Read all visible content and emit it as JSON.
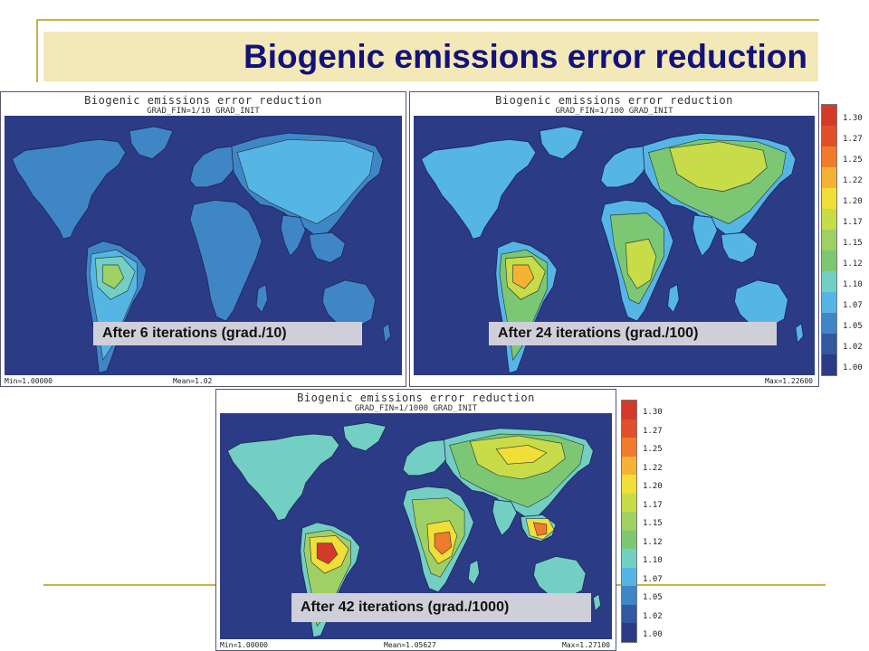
{
  "slide": {
    "title": "Biogenic emissions error reduction"
  },
  "colorscale": {
    "levels": [
      "1.30",
      "1.27",
      "1.25",
      "1.22",
      "1.20",
      "1.17",
      "1.15",
      "1.12",
      "1.10",
      "1.07",
      "1.05",
      "1.02",
      "1.00"
    ],
    "colors": [
      "#d43a2a",
      "#e0502a",
      "#ee7c2c",
      "#f6b235",
      "#f1de37",
      "#c7dc48",
      "#9fd063",
      "#7cc774",
      "#73cfc3",
      "#55b6e6",
      "#3f86c7",
      "#33589f",
      "#2b3b86"
    ]
  },
  "panels": [
    {
      "title": "Biogenic emissions error reduction",
      "subtitle": "GRAD_FIN=1/10 GRAD_INIT",
      "stat_left": "Min=1.00000",
      "stat_mid": "Mean=1.02",
      "stat_right": "",
      "caption": "After 6 iterations (grad./10)",
      "ocean_color": "#2b3b86",
      "land_color": "#3f86c7",
      "zones": [
        {
          "region": "eurasia",
          "color": "#55b6e6"
        },
        {
          "region": "s_america",
          "color": "#55b6e6"
        },
        {
          "region": "amazon",
          "color": "#73cfc3"
        },
        {
          "region": "amazon_core",
          "color": "#9fd063"
        }
      ]
    },
    {
      "title": "Biogenic emissions error reduction",
      "subtitle": "GRAD_FIN=1/100 GRAD_INIT",
      "stat_left": "",
      "stat_mid": "",
      "stat_right": "Max=1.22600",
      "caption": "After 24 iterations (grad./100)",
      "ocean_color": "#2b3b86",
      "land_color": "#55b6e6",
      "zones": [
        {
          "region": "eurasia",
          "color": "#7cc774"
        },
        {
          "region": "siberia",
          "color": "#c7dc48"
        },
        {
          "region": "africa",
          "color": "#7cc774"
        },
        {
          "region": "congo",
          "color": "#c7dc48"
        },
        {
          "region": "s_america",
          "color": "#7cc774"
        },
        {
          "region": "amazon",
          "color": "#c7dc48"
        },
        {
          "region": "amazon_core",
          "color": "#f6b235"
        }
      ]
    },
    {
      "title": "Biogenic emissions error reduction",
      "subtitle": "GRAD_FIN=1/1000 GRAD_INIT",
      "stat_left": "Min=1.00000",
      "stat_mid": "Mean=1.05627",
      "stat_right": "Max=1.27100",
      "caption": "After 42 iterations (grad./1000)",
      "ocean_color": "#2b3b86",
      "land_color": "#73cfc3",
      "zones": [
        {
          "region": "eurasia",
          "color": "#7cc774"
        },
        {
          "region": "siberia",
          "color": "#c7dc48"
        },
        {
          "region": "siberia_core",
          "color": "#f1de37"
        },
        {
          "region": "africa",
          "color": "#9fd063"
        },
        {
          "region": "congo",
          "color": "#f1de37"
        },
        {
          "region": "congo_core",
          "color": "#ee7c2c"
        },
        {
          "region": "s_america",
          "color": "#9fd063"
        },
        {
          "region": "amazon",
          "color": "#f1de37"
        },
        {
          "region": "amazon_core",
          "color": "#d43a2a"
        },
        {
          "region": "se_asia",
          "color": "#f1de37"
        },
        {
          "region": "se_asia_core",
          "color": "#ee7c2c"
        }
      ]
    }
  ]
}
